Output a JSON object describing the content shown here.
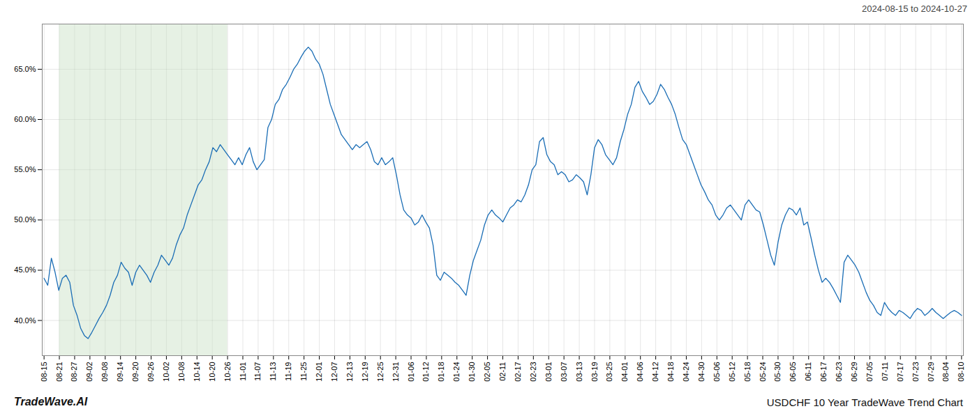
{
  "chart_data": {
    "type": "line",
    "title": "USDCHF 10 Year TradeWave Trend Chart",
    "subtitle": "2024-08-15 to 2024-10-27",
    "annotations": [
      "TradeWave.AI"
    ],
    "color": "#1a6db5",
    "grid": true,
    "xlim": [
      -0.5,
      250.5
    ],
    "xticks": [
      {
        "value": 0,
        "label": "08-15"
      },
      {
        "value": 4.166667,
        "label": "08-21"
      },
      {
        "value": 8.333333,
        "label": "08-27"
      },
      {
        "value": 12.5,
        "label": "09-02"
      },
      {
        "value": 16.666667,
        "label": "09-08"
      },
      {
        "value": 20.833333,
        "label": "09-14"
      },
      {
        "value": 25,
        "label": "09-20"
      },
      {
        "value": 29.166667,
        "label": "09-26"
      },
      {
        "value": 33.333333,
        "label": "10-02"
      },
      {
        "value": 37.5,
        "label": "10-08"
      },
      {
        "value": 41.666667,
        "label": "10-14"
      },
      {
        "value": 45.833333,
        "label": "10-20"
      },
      {
        "value": 50,
        "label": "10-26"
      },
      {
        "value": 54.166667,
        "label": "11-01"
      },
      {
        "value": 58.333333,
        "label": "11-07"
      },
      {
        "value": 62.5,
        "label": "11-13"
      },
      {
        "value": 66.666667,
        "label": "11-19"
      },
      {
        "value": 70.833333,
        "label": "11-25"
      },
      {
        "value": 75,
        "label": "12-01"
      },
      {
        "value": 79.166667,
        "label": "12-07"
      },
      {
        "value": 83.333333,
        "label": "12-13"
      },
      {
        "value": 87.5,
        "label": "12-19"
      },
      {
        "value": 91.666667,
        "label": "12-25"
      },
      {
        "value": 95.833333,
        "label": "12-31"
      },
      {
        "value": 100,
        "label": "01-06"
      },
      {
        "value": 104.166667,
        "label": "01-12"
      },
      {
        "value": 108.333333,
        "label": "01-18"
      },
      {
        "value": 112.5,
        "label": "01-24"
      },
      {
        "value": 116.666667,
        "label": "01-30"
      },
      {
        "value": 120.833333,
        "label": "02-05"
      },
      {
        "value": 125,
        "label": "02-11"
      },
      {
        "value": 129.166667,
        "label": "02-17"
      },
      {
        "value": 133.333333,
        "label": "02-23"
      },
      {
        "value": 137.5,
        "label": "03-01"
      },
      {
        "value": 141.666667,
        "label": "03-07"
      },
      {
        "value": 145.833333,
        "label": "03-13"
      },
      {
        "value": 150,
        "label": "03-19"
      },
      {
        "value": 154.166667,
        "label": "03-25"
      },
      {
        "value": 158.333333,
        "label": "04-01"
      },
      {
        "value": 162.5,
        "label": "04-06"
      },
      {
        "value": 166.666667,
        "label": "04-12"
      },
      {
        "value": 170.833333,
        "label": "04-18"
      },
      {
        "value": 175,
        "label": "04-24"
      },
      {
        "value": 179.166667,
        "label": "04-30"
      },
      {
        "value": 183.333333,
        "label": "05-06"
      },
      {
        "value": 187.5,
        "label": "05-12"
      },
      {
        "value": 191.666667,
        "label": "05-18"
      },
      {
        "value": 195.833333,
        "label": "05-24"
      },
      {
        "value": 200,
        "label": "05-30"
      },
      {
        "value": 204.166667,
        "label": "06-05"
      },
      {
        "value": 208.333333,
        "label": "06-11"
      },
      {
        "value": 212.5,
        "label": "06-17"
      },
      {
        "value": 216.666667,
        "label": "06-23"
      },
      {
        "value": 220.833333,
        "label": "06-29"
      },
      {
        "value": 225,
        "label": "07-05"
      },
      {
        "value": 229.166667,
        "label": "07-11"
      },
      {
        "value": 233.333333,
        "label": "07-17"
      },
      {
        "value": 237.5,
        "label": "07-23"
      },
      {
        "value": 241.666667,
        "label": "07-29"
      },
      {
        "value": 245.833333,
        "label": "08-04"
      },
      {
        "value": 250,
        "label": "08-10"
      }
    ],
    "ylim": [
      36.5,
      69.5
    ],
    "yticks": [
      {
        "value": 40.0,
        "label": "40.0%"
      },
      {
        "value": 45.0,
        "label": "45.0%"
      },
      {
        "value": 50.0,
        "label": "50.0%"
      },
      {
        "value": 55.0,
        "label": "55.0%"
      },
      {
        "value": 60.0,
        "label": "60.0%"
      },
      {
        "value": 65.0,
        "label": "65.0%"
      }
    ],
    "shaded_region": {
      "from": "08-21",
      "to": "10-26",
      "color": "#c8dfc4"
    },
    "values": [
      44.2,
      43.5,
      46.2,
      44.8,
      43.0,
      44.2,
      44.5,
      43.8,
      41.5,
      40.5,
      39.2,
      38.5,
      38.2,
      38.8,
      39.5,
      40.2,
      40.8,
      41.5,
      42.5,
      43.8,
      44.5,
      45.8,
      45.2,
      44.8,
      43.5,
      44.8,
      45.5,
      45.0,
      44.5,
      43.8,
      44.8,
      45.5,
      46.5,
      46.0,
      45.5,
      46.2,
      47.5,
      48.5,
      49.2,
      50.5,
      51.5,
      52.5,
      53.5,
      54.0,
      55.0,
      55.8,
      57.2,
      56.8,
      57.5,
      57.0,
      56.5,
      56.0,
      55.5,
      56.2,
      55.5,
      56.5,
      57.2,
      55.8,
      55.0,
      55.5,
      56.0,
      59.2,
      60.0,
      61.5,
      62.0,
      63.0,
      63.5,
      64.2,
      65.0,
      65.5,
      66.2,
      66.8,
      67.2,
      66.8,
      66.0,
      65.5,
      64.5,
      63.0,
      61.5,
      60.5,
      59.5,
      58.5,
      58.0,
      57.5,
      57.0,
      57.5,
      57.2,
      57.5,
      57.8,
      57.0,
      55.8,
      55.5,
      56.2,
      55.5,
      55.8,
      56.2,
      54.5,
      52.5,
      51.0,
      50.5,
      50.2,
      49.5,
      49.8,
      50.5,
      49.8,
      49.2,
      47.5,
      44.5,
      44.0,
      44.8,
      44.5,
      44.2,
      43.8,
      43.5,
      43.0,
      42.5,
      44.5,
      46.0,
      47.0,
      48.0,
      49.5,
      50.5,
      51.0,
      50.5,
      50.2,
      49.8,
      50.5,
      51.2,
      51.5,
      52.0,
      51.8,
      52.5,
      53.5,
      55.0,
      55.5,
      57.8,
      58.2,
      56.5,
      55.8,
      55.5,
      54.5,
      54.8,
      54.5,
      53.8,
      54.0,
      54.5,
      54.2,
      53.8,
      52.5,
      54.5,
      57.2,
      58.0,
      57.5,
      56.5,
      56.0,
      55.5,
      56.2,
      57.8,
      59.0,
      60.5,
      61.5,
      63.2,
      63.8,
      62.8,
      62.2,
      61.5,
      61.8,
      62.5,
      63.5,
      63.0,
      62.2,
      61.5,
      60.5,
      59.2,
      58.0,
      57.5,
      56.5,
      55.5,
      54.5,
      53.5,
      52.8,
      52.0,
      51.5,
      50.5,
      50.0,
      50.5,
      51.2,
      51.5,
      51.0,
      50.5,
      50.0,
      51.5,
      52.0,
      51.5,
      51.0,
      50.8,
      49.5,
      48.0,
      46.5,
      45.5,
      47.8,
      49.5,
      50.5,
      51.2,
      51.0,
      50.5,
      51.2,
      49.5,
      49.8,
      48.2,
      46.5,
      45.0,
      43.8,
      44.2,
      43.8,
      43.2,
      42.5,
      41.8,
      45.8,
      46.5,
      46.0,
      45.5,
      44.8,
      43.8,
      42.8,
      42.0,
      41.5,
      40.8,
      40.5,
      41.8,
      41.2,
      40.8,
      40.5,
      41.0,
      40.8,
      40.5,
      40.2,
      40.8,
      41.2,
      41.0,
      40.5,
      40.8,
      41.2,
      40.8,
      40.5,
      40.2,
      40.5,
      40.8,
      41.0,
      40.8,
      40.5
    ]
  }
}
